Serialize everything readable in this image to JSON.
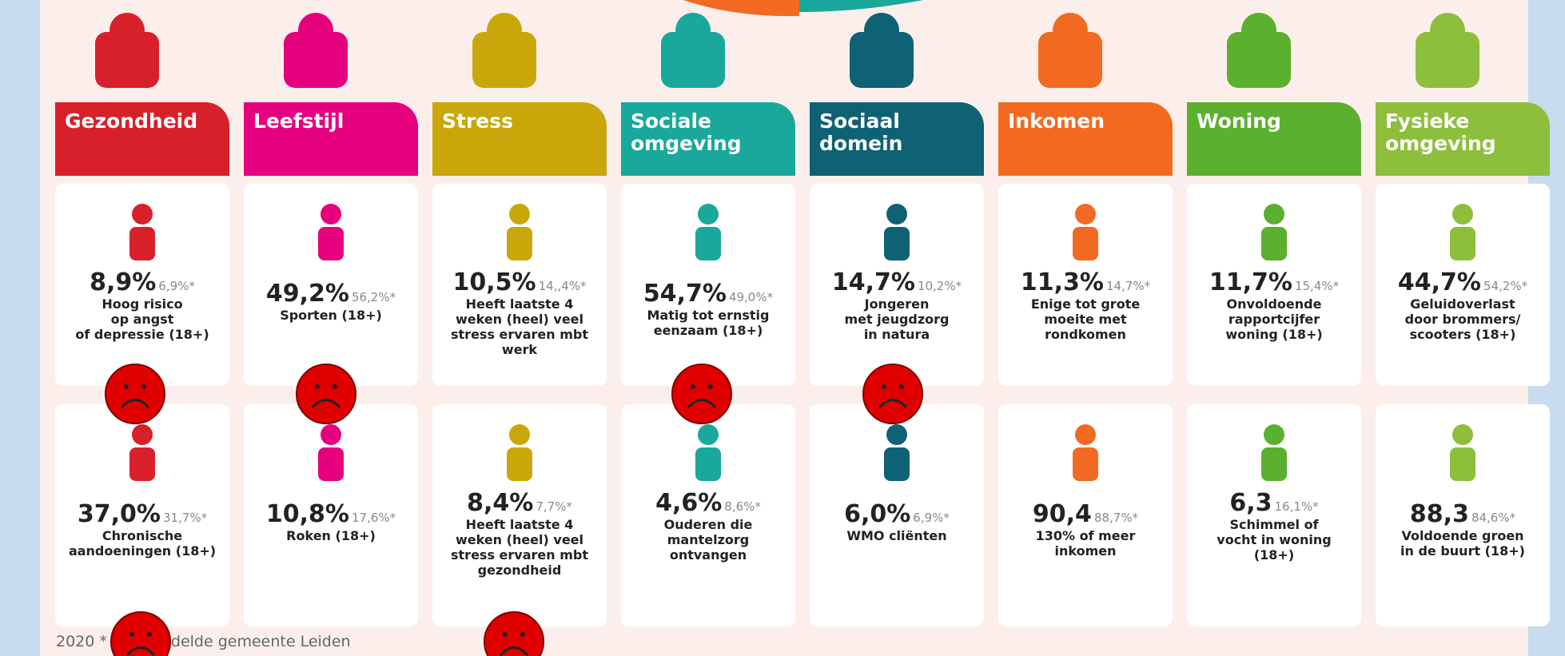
{
  "columns": [
    {
      "header": [
        "Gezondheid"
      ],
      "color": "#d7202a",
      "cards": [
        {
          "value": "8,9%",
          "compare": "6,9%*",
          "label": [
            "Hoog risico",
            "op angst",
            "of depressie (18+)"
          ]
        },
        {
          "value": "37,0%",
          "compare": "31,7%*",
          "label": [
            "Chronische",
            "aandoeningen (18+)"
          ]
        }
      ]
    },
    {
      "header": [
        "Leefstijl"
      ],
      "color": "#e5007e",
      "cards": [
        {
          "value": "49,2%",
          "compare": "56,2%*",
          "label": [
            "Sporten (18+)"
          ]
        },
        {
          "value": "10,8%",
          "compare": "17,6%*",
          "label": [
            "Roken (18+)"
          ]
        }
      ]
    },
    {
      "header": [
        "Stress"
      ],
      "color": "#c9a70a",
      "cards": [
        {
          "value": "10,5%",
          "compare": "14,,4%*",
          "label": [
            "Heeft laatste 4",
            "weken (heel) veel",
            "stress ervaren mbt",
            "werk"
          ]
        },
        {
          "value": "8,4%",
          "compare": "7,7%*",
          "label": [
            "Heeft laatste 4",
            "weken (heel) veel",
            "stress ervaren mbt",
            "gezondheid"
          ]
        }
      ]
    },
    {
      "header": [
        "Sociale",
        "omgeving"
      ],
      "color": "#19a89b",
      "cards": [
        {
          "value": "54,7%",
          "compare": "49,0%*",
          "label": [
            "Matig tot ernstig",
            "eenzaam (18+)"
          ]
        },
        {
          "value": "4,6%",
          "compare": "8,6%*",
          "label": [
            "Ouderen die",
            "mantelzorg",
            "ontvangen"
          ]
        }
      ]
    },
    {
      "header": [
        "Sociaal",
        "domein"
      ],
      "color": "#0f6174",
      "cards": [
        {
          "value": "14,7%",
          "compare": "10,2%*",
          "label": [
            "Jongeren",
            "met jeugdzorg",
            "in natura"
          ]
        },
        {
          "value": "6,0%",
          "compare": "6,9%*",
          "label": [
            "WMO cliënten"
          ]
        }
      ]
    },
    {
      "header": [
        "Inkomen"
      ],
      "color": "#f26a21",
      "cards": [
        {
          "value": "11,3%",
          "compare": "14,7%*",
          "label": [
            "Enige tot grote",
            "moeite met",
            "rondkomen"
          ]
        },
        {
          "value": "90,4",
          "compare": "88,7%*",
          "label": [
            "130% of meer",
            "inkomen"
          ]
        }
      ]
    },
    {
      "header": [
        "Woning"
      ],
      "color": "#5bb02f",
      "cards": [
        {
          "value": "11,7%",
          "compare": "15,4%*",
          "label": [
            "Onvoldoende",
            "rapportcijfer",
            "woning (18+)"
          ]
        },
        {
          "value": "6,3",
          "compare": "16,1%*",
          "label": [
            "Schimmel of",
            "vocht in woning",
            "(18+)"
          ]
        }
      ]
    },
    {
      "header": [
        "Fysieke",
        "omgeving"
      ],
      "color": "#8dbf3c",
      "cards": [
        {
          "value": "44,7%",
          "compare": "54,2%*",
          "label": [
            "Geluidoverlast",
            "door brommers/",
            "scooters (18+)"
          ]
        },
        {
          "value": "88,3",
          "compare": "84,6%*",
          "label": [
            "Voldoende groen",
            "in de buurt  (18+)"
          ]
        }
      ]
    }
  ],
  "footer": [
    "2020 *",
    "delde gemeente Leiden"
  ]
}
